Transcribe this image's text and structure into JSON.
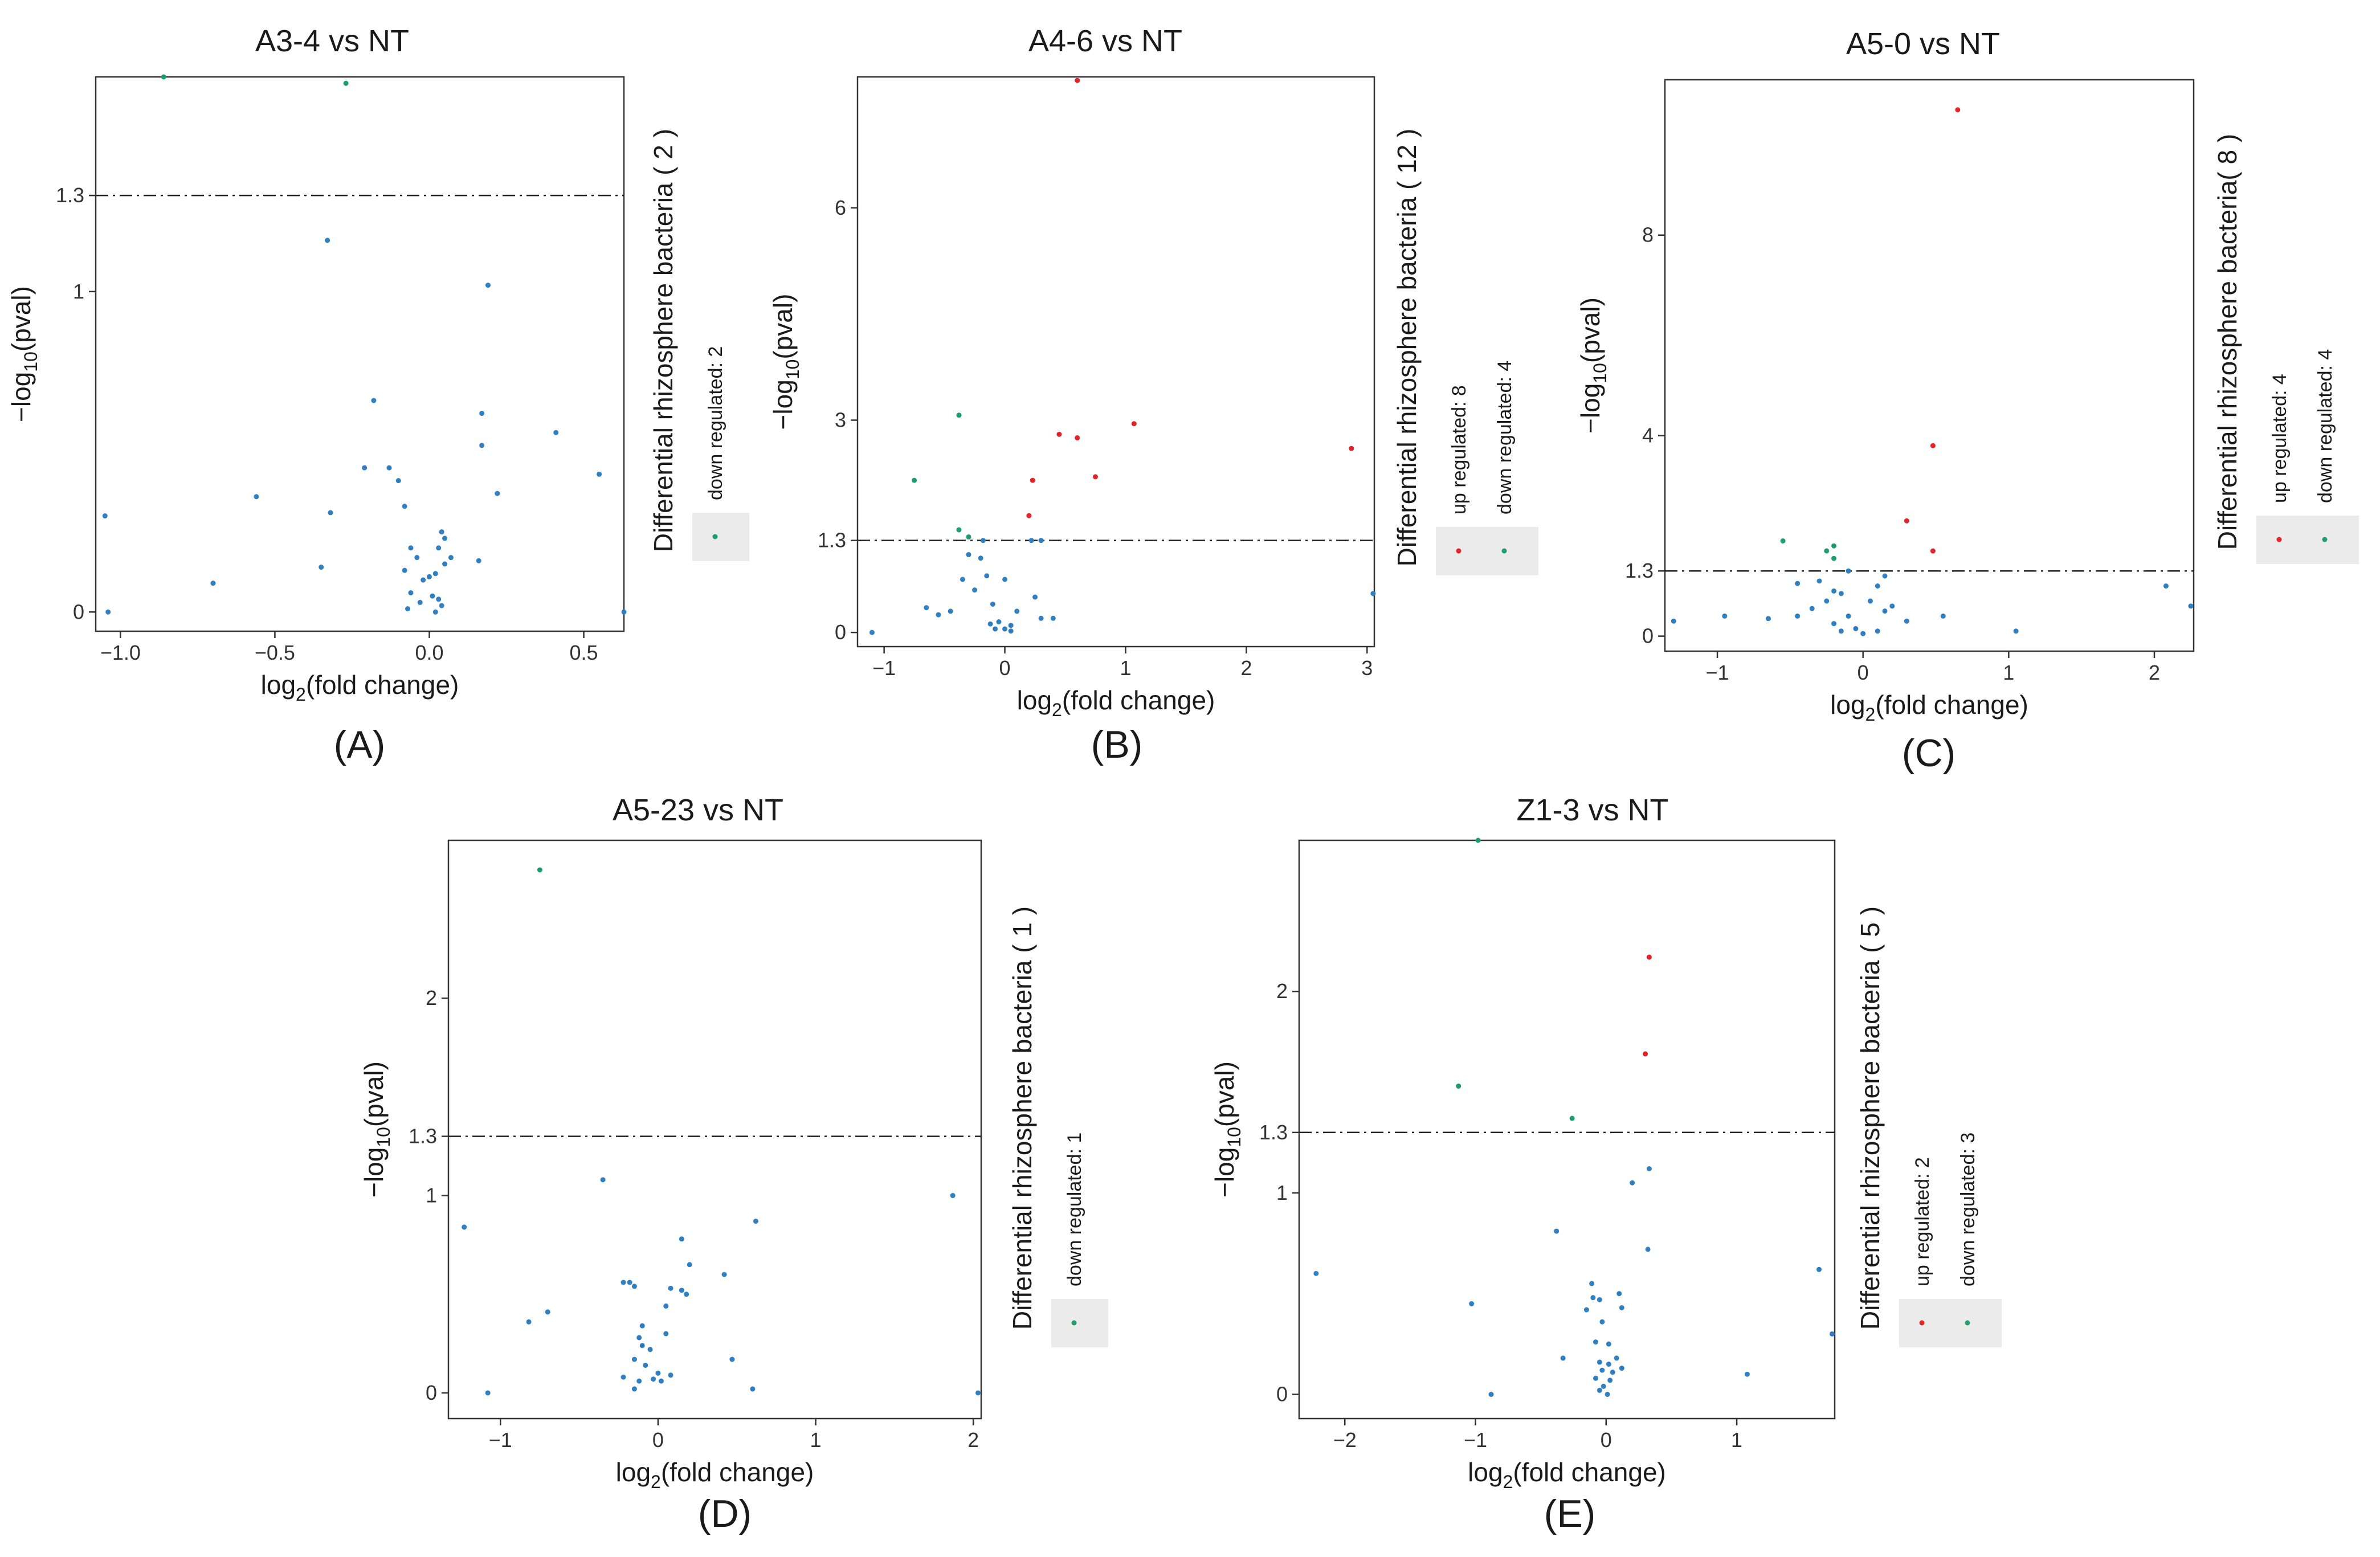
{
  "colors": {
    "up": "#e3242b",
    "down": "#1e9e6e",
    "ns": "#2f7fc1",
    "frame": "#333333",
    "legend_bg": "#ebebeb"
  },
  "chart_data": [
    {
      "id": "A",
      "type": "scatter",
      "panel_label": "(A)",
      "title": "A3-4 vs NT",
      "xlabel": "log2(fold change)",
      "ylabel": "-log10(pval)",
      "xlim": [
        -1.08,
        0.63
      ],
      "ylim": [
        -0.06,
        1.67
      ],
      "xticks": [
        -1.0,
        -0.5,
        0.0,
        0.5
      ],
      "xtick_labels": [
        "-1.0",
        "-0.5",
        "0.0",
        "0.5"
      ],
      "yticks": [
        0,
        1,
        1.3
      ],
      "ytick_labels": [
        "0",
        "1",
        "1.3"
      ],
      "threshold": 1.3,
      "legend": {
        "title": "Differential rhizosphere bacteria ( 2 )",
        "items": [
          {
            "label": "down regulated: 2",
            "color": "down"
          }
        ]
      },
      "points": [
        [
          -0.86,
          1.67,
          "down"
        ],
        [
          -0.27,
          1.65,
          "down"
        ],
        [
          -0.33,
          1.16,
          "ns"
        ],
        [
          0.19,
          1.02,
          "ns"
        ],
        [
          -0.18,
          0.66,
          "ns"
        ],
        [
          0.17,
          0.62,
          "ns"
        ],
        [
          0.41,
          0.56,
          "ns"
        ],
        [
          0.17,
          0.52,
          "ns"
        ],
        [
          -0.21,
          0.45,
          "ns"
        ],
        [
          -0.13,
          0.45,
          "ns"
        ],
        [
          0.55,
          0.43,
          "ns"
        ],
        [
          -0.1,
          0.41,
          "ns"
        ],
        [
          0.22,
          0.37,
          "ns"
        ],
        [
          -0.56,
          0.36,
          "ns"
        ],
        [
          -0.08,
          0.33,
          "ns"
        ],
        [
          -1.05,
          0.3,
          "ns"
        ],
        [
          -0.32,
          0.31,
          "ns"
        ],
        [
          0.04,
          0.25,
          "ns"
        ],
        [
          0.05,
          0.23,
          "ns"
        ],
        [
          0.03,
          0.2,
          "ns"
        ],
        [
          -0.06,
          0.2,
          "ns"
        ],
        [
          -0.04,
          0.17,
          "ns"
        ],
        [
          0.07,
          0.17,
          "ns"
        ],
        [
          0.16,
          0.16,
          "ns"
        ],
        [
          -0.35,
          0.14,
          "ns"
        ],
        [
          0.05,
          0.15,
          "ns"
        ],
        [
          0.02,
          0.12,
          "ns"
        ],
        [
          -0.08,
          0.13,
          "ns"
        ],
        [
          -0.02,
          0.1,
          "ns"
        ],
        [
          0.0,
          0.11,
          "ns"
        ],
        [
          -0.7,
          0.09,
          "ns"
        ],
        [
          -0.06,
          0.06,
          "ns"
        ],
        [
          0.01,
          0.05,
          "ns"
        ],
        [
          0.03,
          0.04,
          "ns"
        ],
        [
          -0.03,
          0.03,
          "ns"
        ],
        [
          0.04,
          0.02,
          "ns"
        ],
        [
          -0.07,
          0.01,
          "ns"
        ],
        [
          -1.04,
          0.0,
          "ns"
        ],
        [
          0.02,
          0.0,
          "ns"
        ],
        [
          0.63,
          0.0,
          "ns"
        ]
      ]
    },
    {
      "id": "B",
      "type": "scatter",
      "panel_label": "(B)",
      "title": "A4-6 vs NT",
      "xlabel": "log2(fold change)",
      "ylabel": "-log10(pval)",
      "xlim": [
        -1.22,
        3.06
      ],
      "ylim": [
        -0.2,
        7.85
      ],
      "xticks": [
        -1,
        0,
        1,
        2,
        3
      ],
      "xtick_labels": [
        "-1",
        "0",
        "1",
        "2",
        "3"
      ],
      "yticks": [
        0,
        1.3,
        3,
        6
      ],
      "ytick_labels": [
        "0",
        "1.3",
        "3",
        "6"
      ],
      "threshold": 1.3,
      "legend": {
        "title": "Differential rhizosphere bacteria ( 12 )",
        "items": [
          {
            "label": "up regulated: 8",
            "color": "up"
          },
          {
            "label": "down regulated: 4",
            "color": "down"
          }
        ]
      },
      "points": [
        [
          0.6,
          7.8,
          "up"
        ],
        [
          0.45,
          2.8,
          "up"
        ],
        [
          0.6,
          2.75,
          "up"
        ],
        [
          1.07,
          2.95,
          "up"
        ],
        [
          2.87,
          2.6,
          "up"
        ],
        [
          0.23,
          2.15,
          "up"
        ],
        [
          0.75,
          2.2,
          "up"
        ],
        [
          0.2,
          1.65,
          "up"
        ],
        [
          -0.38,
          3.07,
          "down"
        ],
        [
          -0.75,
          2.15,
          "down"
        ],
        [
          -0.38,
          1.45,
          "down"
        ],
        [
          -0.3,
          1.35,
          "down"
        ],
        [
          -0.18,
          1.3,
          "ns"
        ],
        [
          0.22,
          1.3,
          "ns"
        ],
        [
          0.3,
          1.3,
          "ns"
        ],
        [
          -0.3,
          1.1,
          "ns"
        ],
        [
          -0.2,
          1.05,
          "ns"
        ],
        [
          -0.35,
          0.75,
          "ns"
        ],
        [
          -0.15,
          0.8,
          "ns"
        ],
        [
          0.0,
          0.75,
          "ns"
        ],
        [
          0.25,
          0.5,
          "ns"
        ],
        [
          -0.25,
          0.6,
          "ns"
        ],
        [
          -0.1,
          0.4,
          "ns"
        ],
        [
          -0.65,
          0.35,
          "ns"
        ],
        [
          -0.45,
          0.3,
          "ns"
        ],
        [
          -0.55,
          0.25,
          "ns"
        ],
        [
          0.1,
          0.3,
          "ns"
        ],
        [
          0.3,
          0.2,
          "ns"
        ],
        [
          0.4,
          0.2,
          "ns"
        ],
        [
          -0.05,
          0.15,
          "ns"
        ],
        [
          0.05,
          0.1,
          "ns"
        ],
        [
          -0.12,
          0.12,
          "ns"
        ],
        [
          0.0,
          0.05,
          "ns"
        ],
        [
          -0.08,
          0.05,
          "ns"
        ],
        [
          0.05,
          0.02,
          "ns"
        ],
        [
          -1.1,
          0.0,
          "ns"
        ],
        [
          3.05,
          0.55,
          "ns"
        ]
      ]
    },
    {
      "id": "C",
      "type": "scatter",
      "panel_label": "(C)",
      "title": "A5-0 vs NT",
      "xlabel": "log2(fold change)",
      "ylabel": "-log10(pval)",
      "xlim": [
        -1.36,
        2.27
      ],
      "ylim": [
        -0.3,
        11.1
      ],
      "xticks": [
        -1,
        0,
        1,
        2
      ],
      "xtick_labels": [
        "-1",
        "0",
        "1",
        "2"
      ],
      "yticks": [
        0,
        1.3,
        4,
        8
      ],
      "ytick_labels": [
        "0",
        "1.3",
        "4",
        "8"
      ],
      "threshold": 1.3,
      "legend": {
        "title": "Differential rhizosphere bacteria( 8 )",
        "items": [
          {
            "label": "up regulated: 4",
            "color": "up"
          },
          {
            "label": "down regulated: 4",
            "color": "down"
          }
        ]
      },
      "points": [
        [
          0.65,
          10.5,
          "up"
        ],
        [
          0.48,
          3.8,
          "up"
        ],
        [
          0.3,
          2.3,
          "up"
        ],
        [
          0.48,
          1.7,
          "up"
        ],
        [
          -0.25,
          1.7,
          "down"
        ],
        [
          -0.2,
          1.8,
          "down"
        ],
        [
          -0.55,
          1.9,
          "down"
        ],
        [
          -0.2,
          1.55,
          "down"
        ],
        [
          -0.1,
          1.3,
          "ns"
        ],
        [
          0.15,
          1.2,
          "ns"
        ],
        [
          -0.3,
          1.1,
          "ns"
        ],
        [
          -0.45,
          1.05,
          "ns"
        ],
        [
          0.1,
          1.0,
          "ns"
        ],
        [
          -0.2,
          0.9,
          "ns"
        ],
        [
          -0.15,
          0.85,
          "ns"
        ],
        [
          -0.25,
          0.7,
          "ns"
        ],
        [
          0.05,
          0.7,
          "ns"
        ],
        [
          0.2,
          0.6,
          "ns"
        ],
        [
          -0.35,
          0.55,
          "ns"
        ],
        [
          0.15,
          0.5,
          "ns"
        ],
        [
          -0.1,
          0.4,
          "ns"
        ],
        [
          -0.45,
          0.4,
          "ns"
        ],
        [
          0.55,
          0.4,
          "ns"
        ],
        [
          0.3,
          0.3,
          "ns"
        ],
        [
          -0.2,
          0.25,
          "ns"
        ],
        [
          -0.05,
          0.15,
          "ns"
        ],
        [
          0.1,
          0.1,
          "ns"
        ],
        [
          -0.15,
          0.1,
          "ns"
        ],
        [
          0.0,
          0.05,
          "ns"
        ],
        [
          -1.3,
          0.3,
          "ns"
        ],
        [
          -0.95,
          0.4,
          "ns"
        ],
        [
          -0.65,
          0.35,
          "ns"
        ],
        [
          1.05,
          0.1,
          "ns"
        ],
        [
          2.08,
          1.0,
          "ns"
        ],
        [
          2.25,
          0.6,
          "ns"
        ]
      ]
    },
    {
      "id": "D",
      "type": "scatter",
      "panel_label": "(D)",
      "title": "A5-23 vs NT",
      "xlabel": "log2(fold change)",
      "ylabel": "-log10(pval)",
      "xlim": [
        -1.33,
        2.05
      ],
      "ylim": [
        -0.13,
        2.8
      ],
      "xticks": [
        -1,
        0,
        1,
        2
      ],
      "xtick_labels": [
        "-1",
        "0",
        "1",
        "2"
      ],
      "yticks": [
        0,
        1,
        1.3,
        2
      ],
      "ytick_labels": [
        "0",
        "1",
        "1.3",
        "2"
      ],
      "threshold": 1.3,
      "legend": {
        "title": "Differential rhizosphere bacteria ( 1 )",
        "items": [
          {
            "label": "down regulated: 1",
            "color": "down"
          }
        ]
      },
      "points": [
        [
          -0.75,
          2.65,
          "down"
        ],
        [
          -0.35,
          1.08,
          "ns"
        ],
        [
          1.87,
          1.0,
          "ns"
        ],
        [
          -1.23,
          0.84,
          "ns"
        ],
        [
          0.62,
          0.87,
          "ns"
        ],
        [
          0.15,
          0.78,
          "ns"
        ],
        [
          0.2,
          0.65,
          "ns"
        ],
        [
          0.42,
          0.6,
          "ns"
        ],
        [
          -0.22,
          0.56,
          "ns"
        ],
        [
          -0.18,
          0.56,
          "ns"
        ],
        [
          -0.15,
          0.54,
          "ns"
        ],
        [
          0.08,
          0.53,
          "ns"
        ],
        [
          0.15,
          0.52,
          "ns"
        ],
        [
          0.18,
          0.5,
          "ns"
        ],
        [
          0.05,
          0.44,
          "ns"
        ],
        [
          -0.7,
          0.41,
          "ns"
        ],
        [
          -0.82,
          0.36,
          "ns"
        ],
        [
          -0.1,
          0.34,
          "ns"
        ],
        [
          -0.12,
          0.28,
          "ns"
        ],
        [
          0.05,
          0.3,
          "ns"
        ],
        [
          -0.1,
          0.24,
          "ns"
        ],
        [
          -0.05,
          0.22,
          "ns"
        ],
        [
          0.47,
          0.17,
          "ns"
        ],
        [
          -0.15,
          0.17,
          "ns"
        ],
        [
          -0.08,
          0.14,
          "ns"
        ],
        [
          -0.22,
          0.08,
          "ns"
        ],
        [
          0.0,
          0.1,
          "ns"
        ],
        [
          -0.12,
          0.06,
          "ns"
        ],
        [
          0.08,
          0.09,
          "ns"
        ],
        [
          -0.03,
          0.07,
          "ns"
        ],
        [
          0.02,
          0.06,
          "ns"
        ],
        [
          -1.08,
          0.0,
          "ns"
        ],
        [
          0.6,
          0.02,
          "ns"
        ],
        [
          2.03,
          0.0,
          "ns"
        ],
        [
          -0.15,
          0.02,
          "ns"
        ]
      ]
    },
    {
      "id": "E",
      "type": "scatter",
      "panel_label": "(E)",
      "title": "Z1-3 vs NT",
      "xlabel": "log2(fold change)",
      "ylabel": "-log10(pval)",
      "xlim": [
        -2.35,
        1.75
      ],
      "ylim": [
        -0.12,
        2.75
      ],
      "xticks": [
        -2,
        -1,
        0,
        1
      ],
      "xtick_labels": [
        "-2",
        "-1",
        "0",
        "1"
      ],
      "yticks": [
        0,
        1,
        1.3,
        2
      ],
      "ytick_labels": [
        "0",
        "1",
        "1.3",
        "2"
      ],
      "threshold": 1.3,
      "legend": {
        "title": "Differential rhizosphere bacteria ( 5 )",
        "items": [
          {
            "label": "up regulated: 2",
            "color": "up"
          },
          {
            "label": "down regulated: 3",
            "color": "down"
          }
        ]
      },
      "points": [
        [
          0.33,
          2.17,
          "up"
        ],
        [
          0.3,
          1.69,
          "up"
        ],
        [
          -0.98,
          2.75,
          "down"
        ],
        [
          -1.13,
          1.53,
          "down"
        ],
        [
          -0.26,
          1.37,
          "down"
        ],
        [
          0.33,
          1.12,
          "ns"
        ],
        [
          0.2,
          1.05,
          "ns"
        ],
        [
          -0.38,
          0.81,
          "ns"
        ],
        [
          0.32,
          0.72,
          "ns"
        ],
        [
          -2.22,
          0.6,
          "ns"
        ],
        [
          1.63,
          0.62,
          "ns"
        ],
        [
          -0.11,
          0.55,
          "ns"
        ],
        [
          0.1,
          0.5,
          "ns"
        ],
        [
          -0.1,
          0.48,
          "ns"
        ],
        [
          -0.05,
          0.47,
          "ns"
        ],
        [
          -1.03,
          0.45,
          "ns"
        ],
        [
          0.12,
          0.43,
          "ns"
        ],
        [
          -0.15,
          0.42,
          "ns"
        ],
        [
          -0.03,
          0.36,
          "ns"
        ],
        [
          1.73,
          0.3,
          "ns"
        ],
        [
          -0.08,
          0.26,
          "ns"
        ],
        [
          0.02,
          0.25,
          "ns"
        ],
        [
          -0.33,
          0.18,
          "ns"
        ],
        [
          0.08,
          0.18,
          "ns"
        ],
        [
          -0.05,
          0.16,
          "ns"
        ],
        [
          0.02,
          0.15,
          "ns"
        ],
        [
          0.12,
          0.13,
          "ns"
        ],
        [
          -0.03,
          0.12,
          "ns"
        ],
        [
          0.05,
          0.11,
          "ns"
        ],
        [
          1.08,
          0.1,
          "ns"
        ],
        [
          -0.08,
          0.08,
          "ns"
        ],
        [
          0.03,
          0.07,
          "ns"
        ],
        [
          -0.02,
          0.04,
          "ns"
        ],
        [
          -0.88,
          0.0,
          "ns"
        ],
        [
          -0.05,
          0.02,
          "ns"
        ],
        [
          0.01,
          0.0,
          "ns"
        ]
      ]
    }
  ]
}
